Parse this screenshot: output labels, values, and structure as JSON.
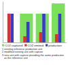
{
  "chart_data": {
    "type": "bar",
    "categories": [
      null,
      null,
      null,
      null
    ],
    "series": [
      {
        "name": "CO2 captured",
        "color": "#7de05a",
        "values": [
          0,
          70,
          70,
          95
        ]
      },
      {
        "name": "CO2 emitted",
        "color": "#e0302a",
        "values": [
          70,
          15,
          25,
          20
        ]
      },
      {
        "name": "production",
        "color": "#3a3ad0",
        "values": [
          70,
          50,
          70,
          70
        ]
      }
    ],
    "ylim": [
      0,
      100
    ],
    "grid": false,
    "tick_labels": false,
    "legend": "bottom",
    "annotations": [
      "1 existing reference production unit",
      "2 modified existing unit with capture",
      "3 new unit with capture providing the same production as the reference unit"
    ]
  }
}
